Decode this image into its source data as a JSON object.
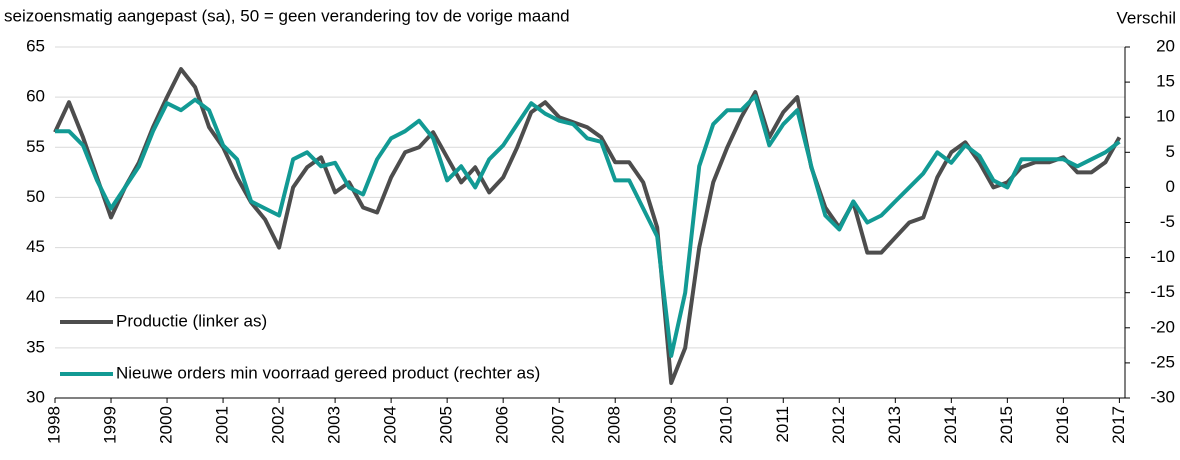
{
  "chart_data": {
    "type": "line",
    "subtitle": "seizoensmatig aangepast (sa), 50 = geen verandering tov de vorige maand",
    "y2_label": "Verschil",
    "x": [
      1998,
      1998.25,
      1998.5,
      1998.75,
      1999,
      1999.25,
      1999.5,
      1999.75,
      2000,
      2000.25,
      2000.5,
      2000.75,
      2001,
      2001.25,
      2001.5,
      2001.75,
      2002,
      2002.25,
      2002.5,
      2002.75,
      2003,
      2003.25,
      2003.5,
      2003.75,
      2004,
      2004.25,
      2004.5,
      2004.75,
      2005,
      2005.25,
      2005.5,
      2005.75,
      2006,
      2006.25,
      2006.5,
      2006.75,
      2007,
      2007.25,
      2007.5,
      2007.75,
      2008,
      2008.25,
      2008.5,
      2008.75,
      2009,
      2009.25,
      2009.5,
      2009.75,
      2010,
      2010.25,
      2010.5,
      2010.75,
      2011,
      2011.25,
      2011.5,
      2011.75,
      2012,
      2012.25,
      2012.5,
      2012.75,
      2013,
      2013.25,
      2013.5,
      2013.75,
      2014,
      2014.25,
      2014.5,
      2014.75,
      2015,
      2015.25,
      2015.5,
      2015.75,
      2016,
      2016.25,
      2016.5,
      2016.75,
      2017
    ],
    "series": [
      {
        "name": "Productie (linker as)",
        "color": "#4d4d4d",
        "axis": "y",
        "values": [
          56.5,
          59.5,
          56,
          52,
          48,
          51,
          53.5,
          57,
          60,
          62.8,
          61,
          57,
          55,
          52,
          49.5,
          47.8,
          45,
          51,
          53,
          54,
          50.5,
          51.5,
          49,
          48.5,
          52,
          54.5,
          55,
          56.5,
          54,
          51.5,
          53,
          50.5,
          52,
          55,
          58.5,
          59.5,
          58,
          57.5,
          57,
          56,
          53.5,
          53.5,
          51.5,
          47,
          31.5,
          35,
          45,
          51.5,
          55,
          58,
          60.5,
          56,
          58.5,
          60,
          53,
          49,
          47,
          49.5,
          44.5,
          44.5,
          46,
          47.5,
          48,
          52,
          54.5,
          55.5,
          53.5,
          51,
          51.5,
          53,
          53.5,
          53.5,
          54,
          52.5,
          52.5,
          53.5,
          56
        ]
      },
      {
        "name": "Nieuwe orders min voorraad gereed product (rechter as)",
        "color": "#129a94",
        "axis": "y2",
        "values": [
          8,
          8,
          6,
          1,
          -3,
          0,
          3,
          8,
          12,
          11,
          12.5,
          11,
          6,
          4,
          -2,
          -3,
          -4,
          4,
          5,
          3,
          3.5,
          0,
          -1,
          4,
          7,
          8,
          9.5,
          7,
          1,
          3,
          0,
          4,
          6,
          9,
          12,
          10.5,
          9.5,
          9,
          7,
          6.5,
          1,
          1,
          -3,
          -7,
          -24,
          -15,
          3,
          9,
          11,
          11,
          13,
          6,
          9,
          11,
          3,
          -4,
          -6,
          -2,
          -5,
          -4,
          -2,
          0,
          2,
          5,
          3.5,
          6,
          4.5,
          1,
          0,
          4,
          4,
          4,
          4,
          3,
          4,
          5,
          6.5
        ]
      }
    ],
    "xlim": [
      1998,
      2017.1
    ],
    "xticks": [
      1998,
      1999,
      2000,
      2001,
      2002,
      2003,
      2004,
      2005,
      2006,
      2007,
      2008,
      2009,
      2010,
      2011,
      2012,
      2013,
      2014,
      2015,
      2016,
      2017
    ],
    "ylim": [
      30,
      65
    ],
    "yticks": [
      30,
      35,
      40,
      45,
      50,
      55,
      60,
      65
    ],
    "y2lim": [
      -30,
      20
    ],
    "y2ticks": [
      -30,
      -25,
      -20,
      -15,
      -10,
      -5,
      0,
      5,
      10,
      15,
      20
    ],
    "grid": true,
    "legend": "lower left"
  }
}
